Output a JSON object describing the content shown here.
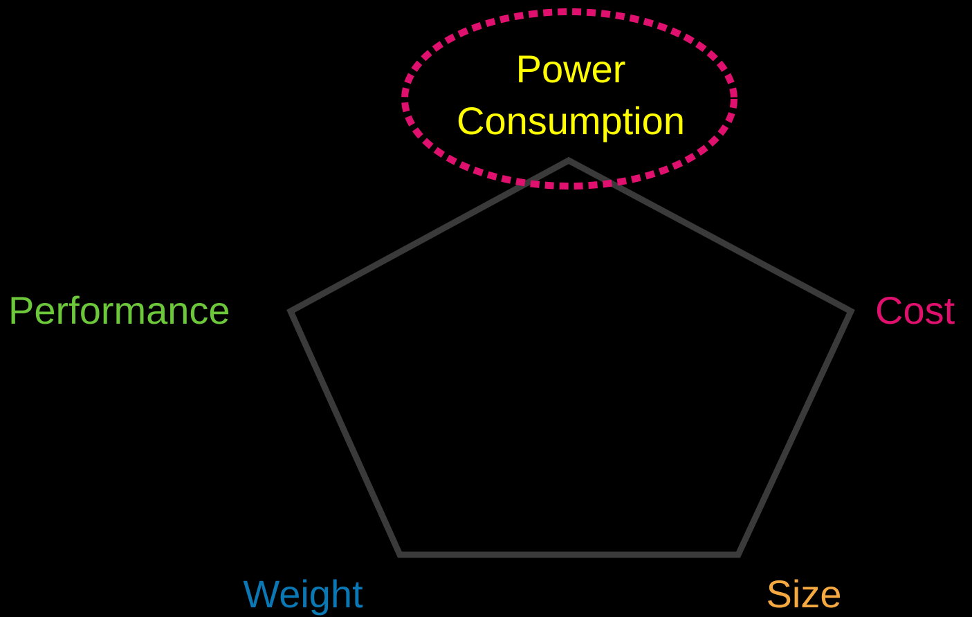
{
  "nodes": [
    {
      "lines": [
        "Power",
        "Consumption"
      ],
      "color": "#ffff00"
    },
    {
      "lines": [
        "Performance"
      ],
      "color": "#6cc83a"
    },
    {
      "lines": [
        "Cost"
      ],
      "color": "#e0106e"
    },
    {
      "lines": [
        "Weight"
      ],
      "color": "#0a78b4"
    },
    {
      "lines": [
        "Size"
      ],
      "color": "#f5a940"
    }
  ]
}
